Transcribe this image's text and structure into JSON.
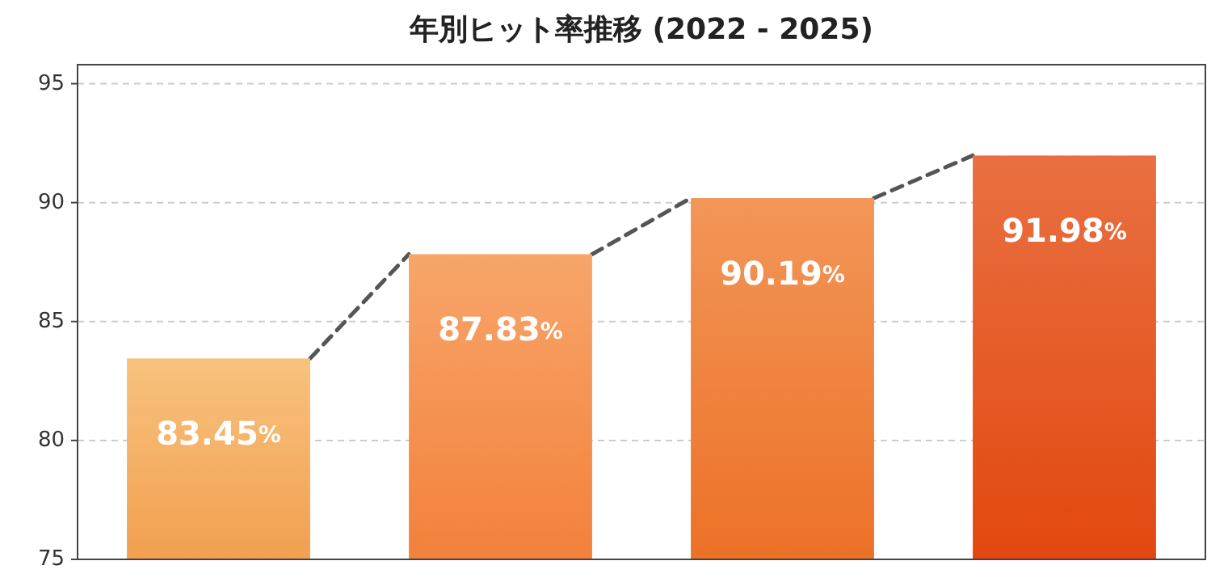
{
  "chart_data": {
    "type": "bar",
    "title": "年別ヒット率推移 (2022 - 2025)",
    "categories": [
      null,
      null,
      null,
      null
    ],
    "values": [
      83.45,
      87.83,
      90.19,
      91.98
    ],
    "colors": [
      "#f6b35e",
      "#f68f45",
      "#ef7c2e",
      "#e44c12"
    ],
    "value_labels": [
      "83.45%",
      "87.83%",
      "90.19%",
      "91.98%"
    ],
    "ylim": [
      75,
      95.8
    ],
    "yticks": [
      75,
      80,
      85,
      90,
      95
    ],
    "grid": "y"
  }
}
